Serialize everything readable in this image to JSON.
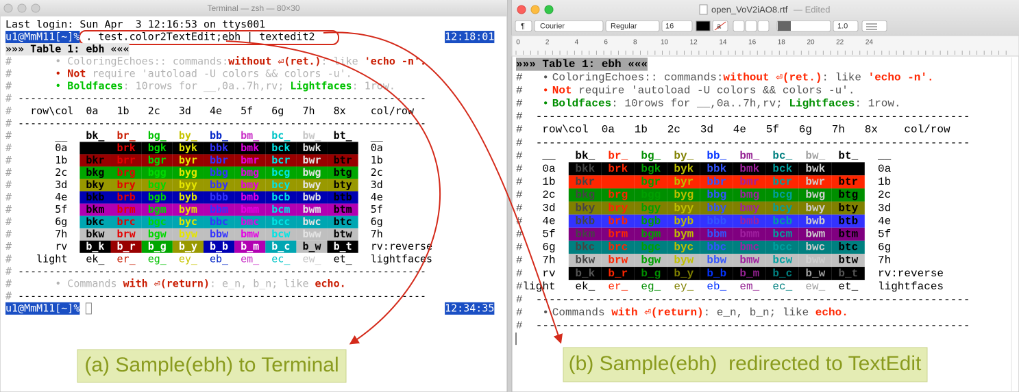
{
  "terminal": {
    "title": "Terminal — zsh — 80×30",
    "login": "Last login: Sun Apr  3 12:16:53 on ttys001",
    "prompt": "u1@MmM11[~]%",
    "command": ". test.color2TextEdit;ebh | textedit2",
    "time_start": "12:18:01",
    "time_end": "12:34:35"
  },
  "textedit": {
    "title": "open_VoV2iAO8.rtf",
    "status": "— Edited",
    "paragraph": "¶",
    "font": "Courier",
    "style": "Regular",
    "size": "16",
    "swatch": "a",
    "formats": [
      "B",
      "I",
      "U"
    ],
    "spacing": "1.0",
    "ruler": [
      0,
      2,
      4,
      6,
      8,
      10,
      12,
      14,
      16,
      18,
      20,
      22,
      24
    ]
  },
  "content": {
    "heading": "»»» Table 1: ebh «««",
    "comment": "#",
    "bullet": "•",
    "bullets": [
      [
        "ColoringEchoes:: commands:",
        "without ⏎(ret.)",
        ": like ",
        "'echo -n'."
      ],
      [
        "Not",
        " require 'autoload -U colors && colors -u'."
      ],
      [
        "Boldfaces",
        ": 10rows for __,0a..7h,rv; ",
        "Lightfaces",
        ": 1row."
      ]
    ],
    "rule": "------------------------------------------------------------------",
    "header": {
      "label": "row\\col",
      "cols": [
        "0a",
        "1b",
        "2c",
        "3d",
        "4e",
        "5f",
        "6g",
        "7h",
        "8x"
      ],
      "end": "col/row"
    },
    "rows": [
      {
        "label": "__",
        "cells": [
          "bk_",
          "br_",
          "bg_",
          "by_",
          "bb_",
          "bm_",
          "bc_",
          "bw_",
          "bt_"
        ],
        "end": "__"
      },
      {
        "label": "0a",
        "cells": [
          "bkk",
          "brk",
          "bgk",
          "byk",
          "bbk",
          "bmk",
          "bck",
          "bwk",
          null
        ],
        "end": "0a"
      },
      {
        "label": "1b",
        "cells": [
          "bkr",
          "brr",
          "bgr",
          "byr",
          "bbr",
          "bmr",
          "bcr",
          "bwr",
          "btr"
        ],
        "end": "1b"
      },
      {
        "label": "2c",
        "cells": [
          "bkg",
          "brg",
          "bgg",
          "byg",
          "bbg",
          "bmg",
          "bcg",
          "bwg",
          "btg"
        ],
        "end": "2c"
      },
      {
        "label": "3d",
        "cells": [
          "bky",
          "bry",
          "bgy",
          "byy",
          "bby",
          "bmy",
          "bcy",
          "bwy",
          "bty"
        ],
        "end": "3d"
      },
      {
        "label": "4e",
        "cells": [
          "bkb",
          "brb",
          "bgb",
          "byb",
          "bbb",
          "bmb",
          "bcb",
          "bwb",
          "btb"
        ],
        "end": "4e"
      },
      {
        "label": "5f",
        "cells": [
          "bkm",
          "brm",
          "bgm",
          "bym",
          "bbm",
          "bmm",
          "bcm",
          "bwm",
          "btm"
        ],
        "end": "5f"
      },
      {
        "label": "6g",
        "cells": [
          "bkc",
          "brc",
          "bgc",
          "byc",
          "bbc",
          "bmc",
          "bcc",
          "bwc",
          "btc"
        ],
        "end": "6g"
      },
      {
        "label": "7h",
        "cells": [
          "bkw",
          "brw",
          "bgw",
          "byw",
          "bbw",
          "bmw",
          "bcw",
          "bww",
          "btw"
        ],
        "end": "7h"
      },
      {
        "label": "rv",
        "cells": [
          "b_k",
          "b_r",
          "b_g",
          "b_y",
          "b_b",
          "b_m",
          "b_c",
          "b_w",
          "b_t"
        ],
        "end": "rv:reverse"
      },
      {
        "label": "light",
        "cells": [
          "ek_",
          "er_",
          "eg_",
          "ey_",
          "eb_",
          "em_",
          "ec_",
          "ew_",
          "et_"
        ],
        "end": "lightfaces"
      }
    ],
    "footer": [
      "Commands ",
      "with ⏎(return)",
      ": e_n, b_n; like ",
      "echo."
    ]
  },
  "annotations": [
    "(a) Sample(ebh) to Terminal",
    "(b) Sample(ebh)  redirected to TextEdit"
  ]
}
